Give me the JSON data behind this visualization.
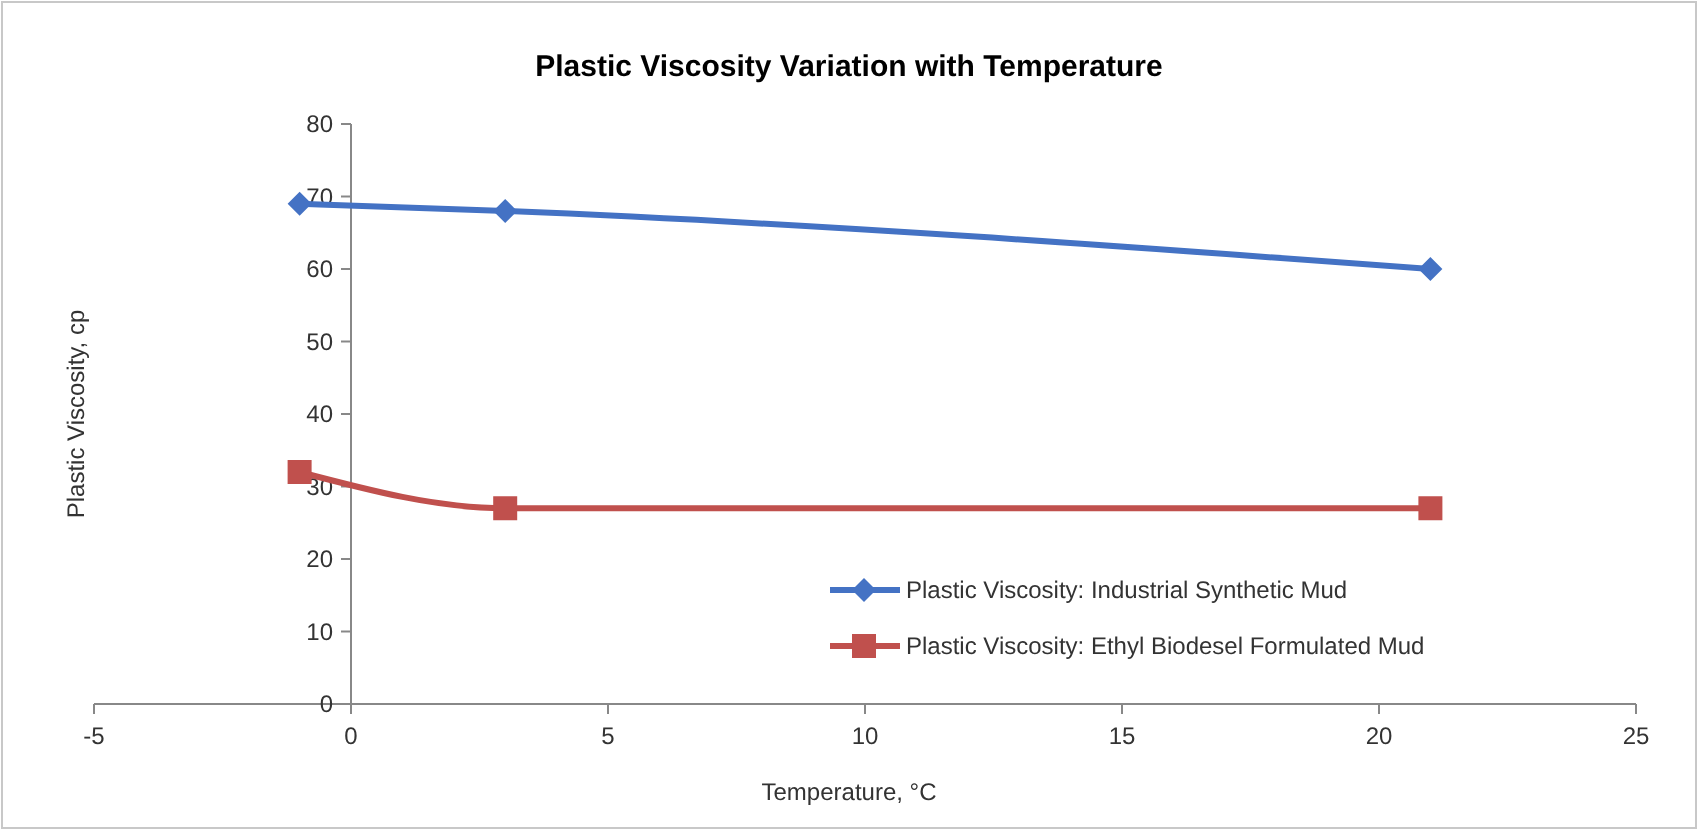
{
  "chart_data": {
    "type": "line",
    "title": "Plastic Viscosity Variation with Temperature",
    "xlabel": "Temperature, °C",
    "ylabel": "Plastic Viscosity, cp",
    "x": [
      -1,
      3,
      21
    ],
    "series": [
      {
        "name": "Plastic Viscosity: Industrial Synthetic Mud",
        "color": "#4472c4",
        "marker": "diamond",
        "values": [
          69,
          68,
          60
        ]
      },
      {
        "name": "Plastic Viscosity: Ethyl Biodesel Formulated Mud",
        "color": "#c0504d",
        "marker": "square",
        "values": [
          32,
          27,
          27
        ]
      }
    ],
    "xlim": [
      -5,
      25
    ],
    "xticks": [
      -5,
      0,
      5,
      10,
      15,
      20,
      25
    ],
    "ylim": [
      0,
      80
    ],
    "yticks": [
      0,
      10,
      20,
      30,
      40,
      50,
      60,
      70,
      80
    ],
    "grid": false,
    "legend": "bottom right"
  }
}
